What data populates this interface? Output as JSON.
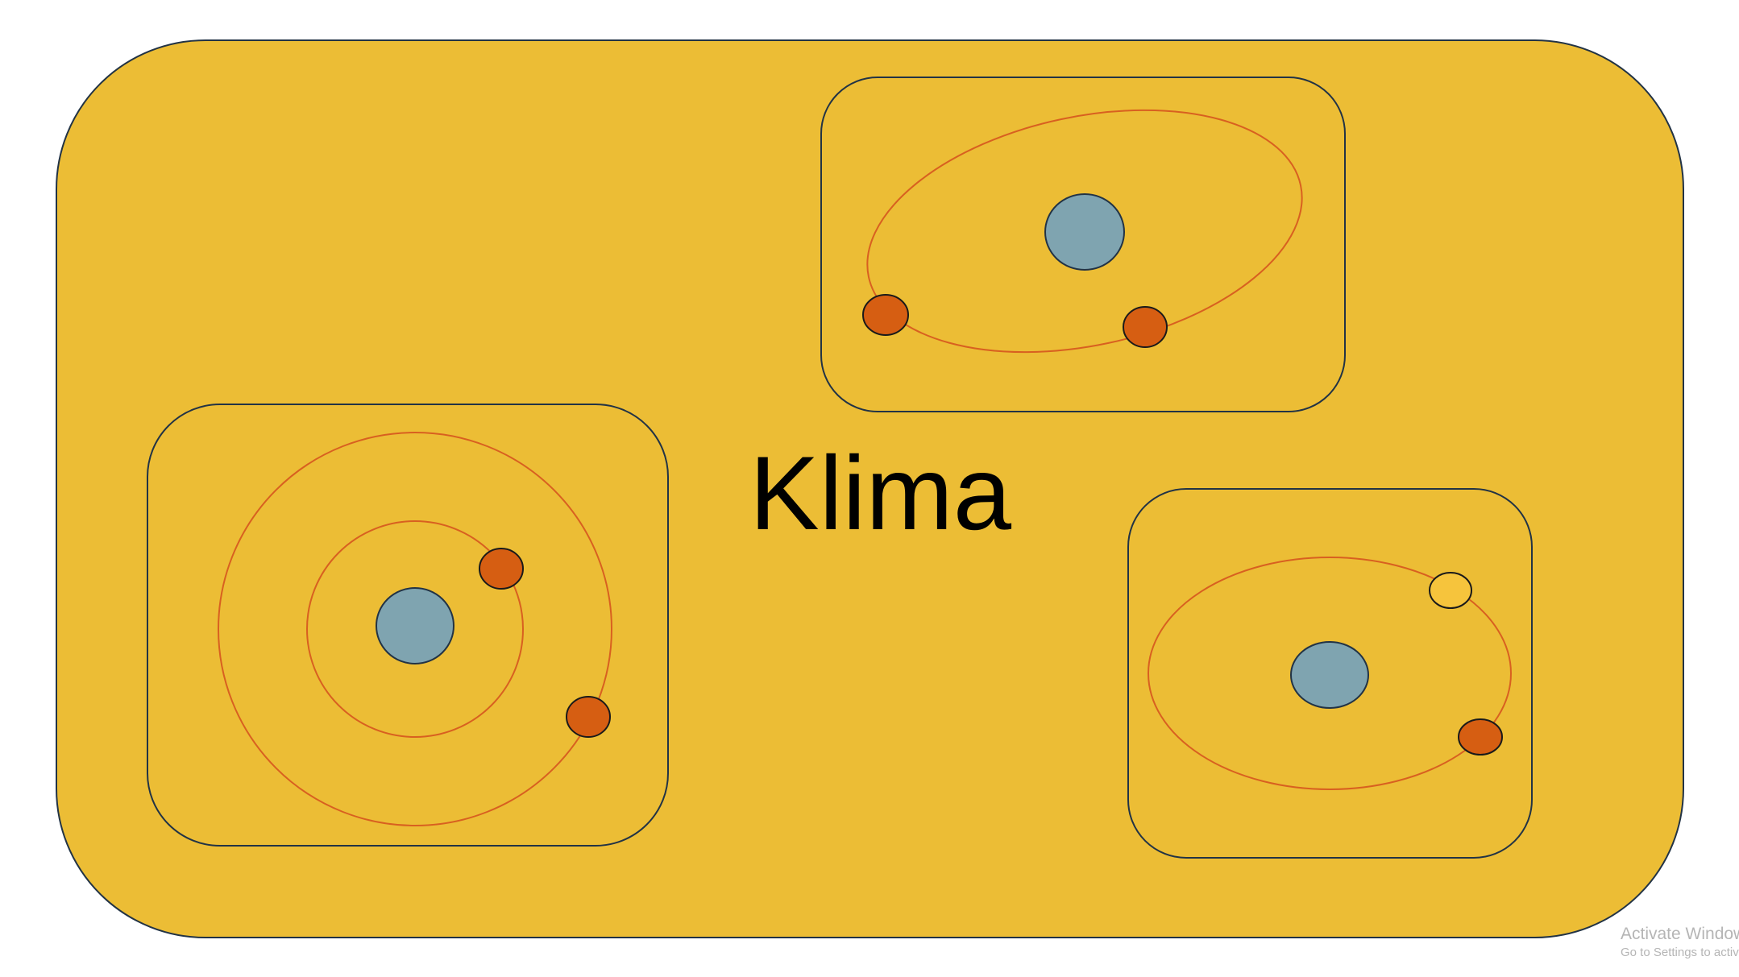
{
  "title": "Klima",
  "colors": {
    "background": "#ffffff",
    "slide_fill": "#ecbd35",
    "panel_stroke": "#223345",
    "orbit_stroke": "#d86020",
    "nucleus_fill": "#7fa4b0",
    "electron_fill": "#d65e12",
    "electron_light_fill": "#f6c43c",
    "watermark": "#b5b5b5"
  },
  "panels": [
    {
      "name": "atom-panel-top",
      "orbit": "tilted-ellipse",
      "electrons": 2
    },
    {
      "name": "atom-panel-left",
      "orbit": "concentric-circles",
      "electrons": 2
    },
    {
      "name": "atom-panel-right",
      "orbit": "horizontal-ellipse",
      "electrons": 2
    }
  ],
  "watermark": {
    "title": "Activate Windows",
    "subtitle": "Go to Settings to activate Windows."
  }
}
